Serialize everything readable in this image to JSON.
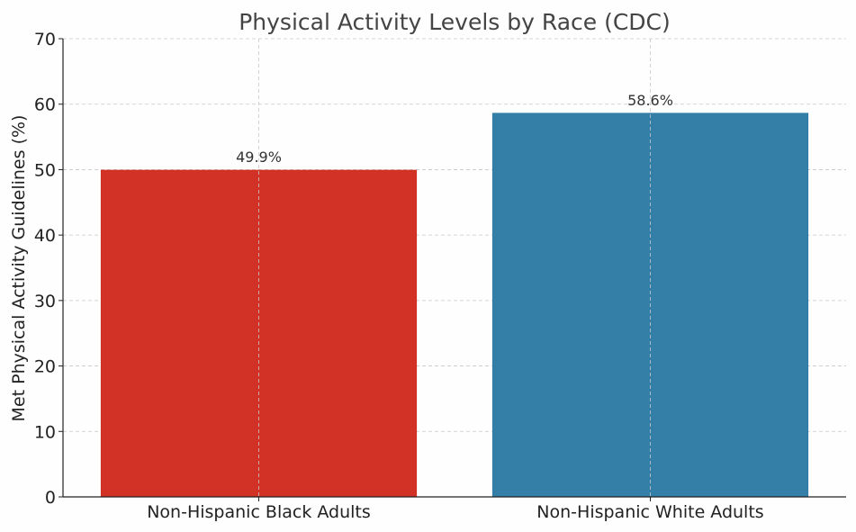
{
  "chart_data": {
    "type": "bar",
    "title": "Physical Activity Levels by Race (CDC)",
    "xlabel": "",
    "ylabel": "Met Physical Activity Guidelines (%)",
    "categories": [
      "Non-Hispanic Black Adults",
      "Non-Hispanic White Adults"
    ],
    "values": [
      49.9,
      58.6
    ],
    "value_labels": [
      "49.9%",
      "58.6%"
    ],
    "colors": [
      "#d12e22",
      "#2f7ca6"
    ],
    "ylim": [
      0,
      70
    ],
    "yticks": [
      0,
      10,
      20,
      30,
      40,
      50,
      60,
      70
    ],
    "ytick_labels": [
      "0",
      "10",
      "20",
      "30",
      "40",
      "50",
      "60",
      "70"
    ],
    "grid": true
  }
}
